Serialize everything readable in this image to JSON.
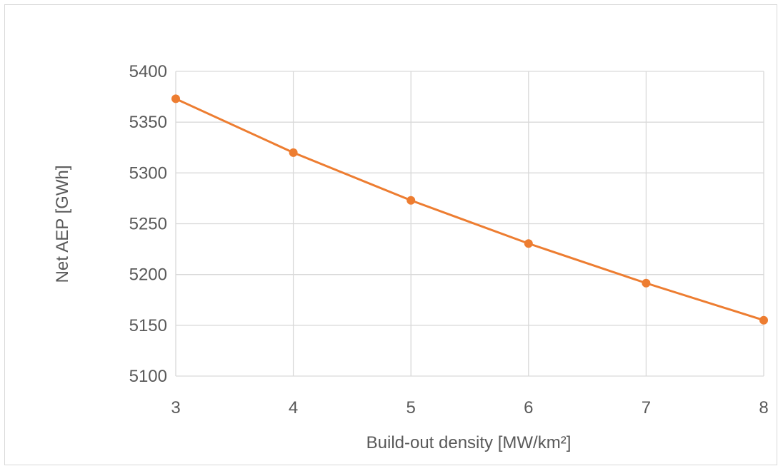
{
  "chart_data": {
    "type": "line",
    "title": "",
    "xlabel": "Build-out density [MW/km²]",
    "ylabel": "Net AEP [GWh]",
    "x": [
      3,
      4,
      5,
      6,
      7,
      8
    ],
    "series": [
      {
        "values": [
          5373,
          5320,
          5273,
          5230.5,
          5191.5,
          5155
        ]
      }
    ],
    "xlim": [
      3,
      8
    ],
    "ylim": [
      5100,
      5400
    ],
    "xticks": [
      "3",
      "4",
      "5",
      "6",
      "7",
      "8"
    ],
    "yticks": [
      "5100",
      "5150",
      "5200",
      "5250",
      "5300",
      "5350",
      "5400"
    ],
    "grid": true,
    "legend": "none",
    "colors": {
      "line": "#ED7D31",
      "grid": "#d9d9d9",
      "text": "#595959"
    }
  }
}
